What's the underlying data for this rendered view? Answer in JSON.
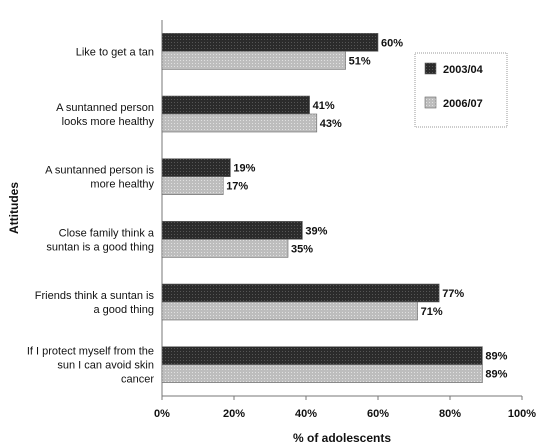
{
  "chart_data": {
    "type": "bar",
    "orientation": "horizontal",
    "categories": [
      [
        "Like to get a tan"
      ],
      [
        "A suntanned person",
        "looks more healthy"
      ],
      [
        "A suntanned person is",
        "more healthy"
      ],
      [
        "Close family think a",
        "suntan is a good thing"
      ],
      [
        "Friends think a suntan is",
        "a good thing"
      ],
      [
        "If I protect myself from the",
        "sun I can avoid skin",
        "cancer"
      ]
    ],
    "series": [
      {
        "name": "2003/04",
        "values": [
          60,
          41,
          19,
          39,
          77,
          89
        ],
        "color": "#2b2b2b"
      },
      {
        "name": "2006/07",
        "values": [
          51,
          43,
          17,
          35,
          71,
          89
        ],
        "color": "#bdbdbd"
      }
    ],
    "value_suffix": "%",
    "xlabel": "% of adolescents",
    "ylabel": "Attitudes",
    "xlim": [
      0,
      100
    ],
    "xticks": [
      0,
      20,
      40,
      60,
      80,
      100
    ],
    "grid": false,
    "legend_position": "right"
  }
}
